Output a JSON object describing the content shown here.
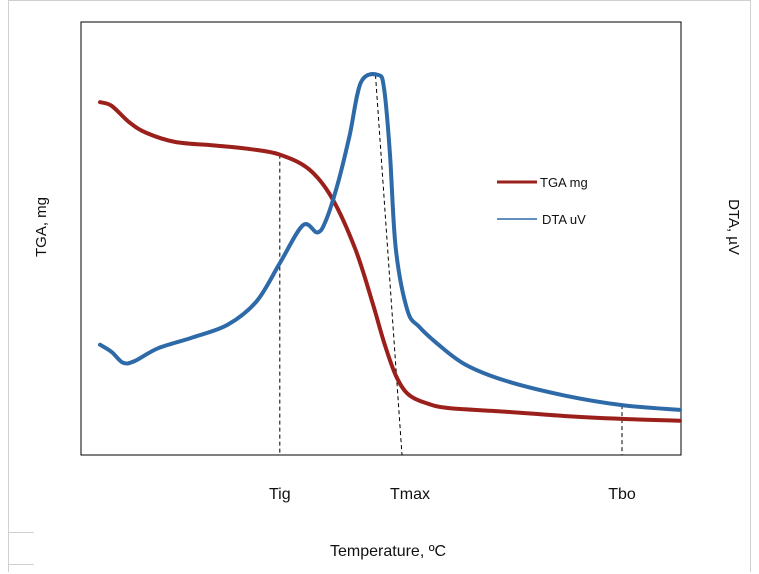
{
  "chart_data": {
    "type": "line",
    "xlabel": "Temperature, ºC",
    "ylabel_left": "TGA, mg",
    "ylabel_right": "DTA, µV",
    "x_ticks": [
      {
        "label": "Tig",
        "x": 0.31
      },
      {
        "label": "Tmax",
        "x": 0.5
      },
      {
        "label": "Tbo",
        "x": 0.9
      }
    ],
    "xlim": [
      0,
      1
    ],
    "ylim": [
      0,
      1
    ],
    "grid": false,
    "legend_position": "right",
    "series": [
      {
        "name": "TGA mg",
        "color": "#9b1f1a",
        "x": [
          0.0,
          0.02,
          0.05,
          0.08,
          0.13,
          0.2,
          0.26,
          0.31,
          0.36,
          0.4,
          0.44,
          0.47,
          0.49,
          0.51,
          0.53,
          0.56,
          0.6,
          0.7,
          0.8,
          0.9,
          1.0
        ],
        "y": [
          0.925,
          0.915,
          0.87,
          0.84,
          0.815,
          0.805,
          0.795,
          0.78,
          0.74,
          0.66,
          0.52,
          0.37,
          0.26,
          0.17,
          0.12,
          0.095,
          0.08,
          0.07,
          0.058,
          0.05,
          0.045
        ]
      },
      {
        "name": "DTA uV",
        "color": "#2e6aa8",
        "x": [
          0.0,
          0.02,
          0.04,
          0.06,
          0.1,
          0.16,
          0.22,
          0.27,
          0.31,
          0.35,
          0.375,
          0.39,
          0.41,
          0.43,
          0.45,
          0.48,
          0.49,
          0.5,
          0.51,
          0.53,
          0.55,
          0.58,
          0.63,
          0.7,
          0.8,
          0.9,
          1.0
        ],
        "y": [
          0.255,
          0.235,
          0.205,
          0.21,
          0.245,
          0.275,
          0.31,
          0.375,
          0.48,
          0.585,
          0.565,
          0.6,
          0.7,
          0.83,
          0.98,
          1.0,
          0.96,
          0.78,
          0.52,
          0.35,
          0.305,
          0.26,
          0.2,
          0.155,
          0.115,
          0.088,
          0.075
        ]
      }
    ],
    "vlines": [
      {
        "label": "Tig",
        "x": 0.31
      },
      {
        "label": "Tmax",
        "x": 0.5
      },
      {
        "label": "Tbo",
        "x": 0.9
      }
    ]
  }
}
